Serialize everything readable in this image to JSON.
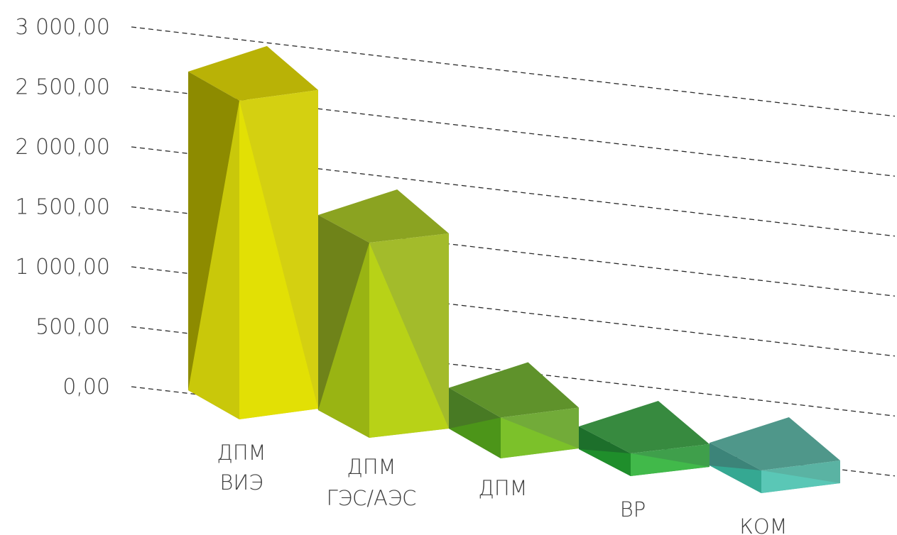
{
  "chart_data": {
    "type": "bar",
    "categories": [
      [
        "ДПМ",
        "ВИЭ"
      ],
      [
        "ДПМ",
        "ГЭС/АЭС"
      ],
      [
        "ДПМ"
      ],
      [
        "ВР"
      ],
      [
        "КОМ"
      ]
    ],
    "values": [
      2580,
      1580,
      330,
      30,
      30
    ],
    "ylim": [
      0,
      3000
    ],
    "yticks": [
      0,
      500,
      1000,
      1500,
      2000,
      2500,
      3000
    ],
    "ytick_labels": [
      "0,00",
      "500,00",
      "1 000,00",
      "1 500,00",
      "2 000,00",
      "2 500,00",
      "3 000,00"
    ],
    "grid": true,
    "colors": [
      {
        "front": "#e2e005",
        "front_shade": "#c9c80a",
        "side": "#d4d011",
        "side_dark": "#8d8b00",
        "top": "#b9b206"
      },
      {
        "front": "#b8d217",
        "front_shade": "#99b413",
        "side": "#a3bb2b",
        "side_dark": "#6f8319",
        "top": "#8ba321"
      },
      {
        "front": "#7cc12a",
        "front_shade": "#4c9519",
        "side": "#72ab39",
        "side_dark": "#487a24",
        "top": "#5f922b"
      },
      {
        "front": "#41b94a",
        "front_shade": "#1f8e2b",
        "side": "#3f9f4b",
        "side_dark": "#1d6f2b",
        "top": "#378a3f"
      },
      {
        "front": "#5ac7b6",
        "front_shade": "#35a892",
        "side": "#5ab3a3",
        "side_dark": "#3c8479",
        "top": "#4f978a"
      }
    ]
  }
}
